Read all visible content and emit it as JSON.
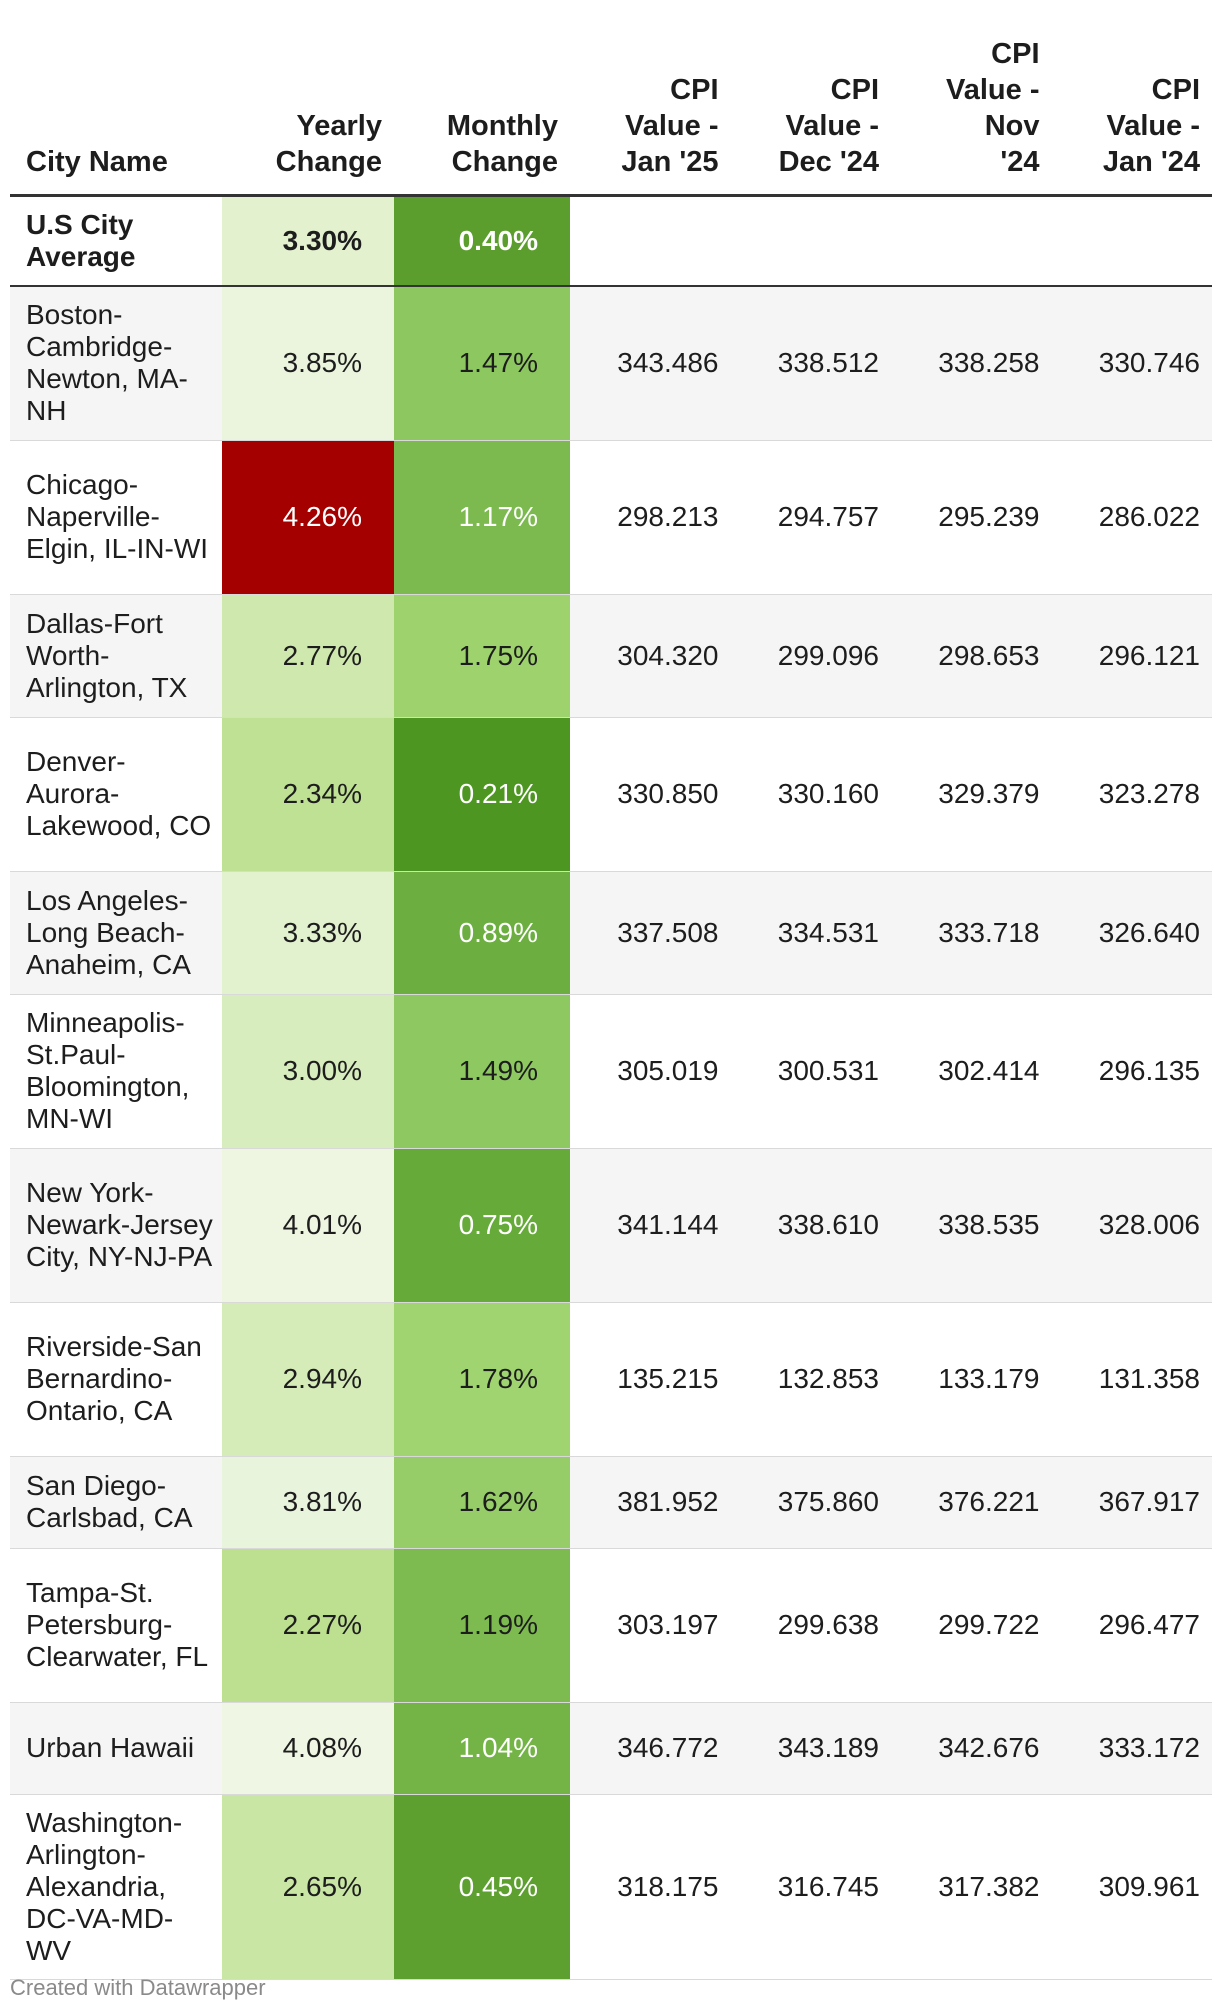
{
  "chart_data": {
    "type": "table",
    "columns": [
      "City Name",
      "Yearly Change",
      "Monthly Change",
      "CPI Value - Jan '25",
      "CPI Value - Dec '24",
      "CPI Value - Nov '24",
      "CPI Value - Jan '24"
    ],
    "rows": [
      {
        "city": "U.S City Average",
        "yearly": "3.30%",
        "monthly": "0.40%",
        "jan25": "",
        "dec24": "",
        "nov24": "",
        "jan24": "",
        "yearly_bg": "#e3f1cf",
        "yearly_fg": "#1d1d1d",
        "monthly_bg": "#5c9e2e",
        "monthly_fg": "#ffffff"
      },
      {
        "city": "Boston-Cambridge-Newton, MA-NH",
        "yearly": "3.85%",
        "monthly": "1.47%",
        "jan25": "343.486",
        "dec24": "338.512",
        "nov24": "338.258",
        "jan24": "330.746",
        "yearly_bg": "#ebf5de",
        "yearly_fg": "#1d1d1d",
        "monthly_bg": "#8dc760",
        "monthly_fg": "#1d1d1d"
      },
      {
        "city": "Chicago-Naperville-Elgin, IL-IN-WI",
        "yearly": "4.26%",
        "monthly": "1.17%",
        "jan25": "298.213",
        "dec24": "294.757",
        "nov24": "295.239",
        "jan24": "286.022",
        "yearly_bg": "#a50000",
        "yearly_fg": "#ffffff",
        "monthly_bg": "#7cba4f",
        "monthly_fg": "#ffffff"
      },
      {
        "city": "Dallas-Fort Worth-Arlington, TX",
        "yearly": "2.77%",
        "monthly": "1.75%",
        "jan25": "304.320",
        "dec24": "299.096",
        "nov24": "298.653",
        "jan24": "296.121",
        "yearly_bg": "#cfe8ae",
        "yearly_fg": "#1d1d1d",
        "monthly_bg": "#9dd26d",
        "monthly_fg": "#1d1d1d"
      },
      {
        "city": "Denver-Aurora-Lakewood, CO",
        "yearly": "2.34%",
        "monthly": "0.21%",
        "jan25": "330.850",
        "dec24": "330.160",
        "nov24": "329.379",
        "jan24": "323.278",
        "yearly_bg": "#bfe194",
        "yearly_fg": "#1d1d1d",
        "monthly_bg": "#4e9622",
        "monthly_fg": "#ffffff"
      },
      {
        "city": "Los Angeles-Long Beach-Anaheim, CA",
        "yearly": "3.33%",
        "monthly": "0.89%",
        "jan25": "337.508",
        "dec24": "334.531",
        "nov24": "333.718",
        "jan24": "326.640",
        "yearly_bg": "#e2f1ce",
        "yearly_fg": "#1d1d1d",
        "monthly_bg": "#6caf40",
        "monthly_fg": "#ffffff"
      },
      {
        "city": "Minneapolis-St.Paul-Bloomington, MN-WI",
        "yearly": "3.00%",
        "monthly": "1.49%",
        "jan25": "305.019",
        "dec24": "300.531",
        "nov24": "302.414",
        "jan24": "296.135",
        "yearly_bg": "#d8edbd",
        "yearly_fg": "#1d1d1d",
        "monthly_bg": "#8ec861",
        "monthly_fg": "#1d1d1d"
      },
      {
        "city": "New York-Newark-Jersey City, NY-NJ-PA",
        "yearly": "4.01%",
        "monthly": "0.75%",
        "jan25": "341.144",
        "dec24": "338.610",
        "nov24": "338.535",
        "jan24": "328.006",
        "yearly_bg": "#eef6e2",
        "yearly_fg": "#1d1d1d",
        "monthly_bg": "#66aa3a",
        "monthly_fg": "#ffffff"
      },
      {
        "city": "Riverside-San Bernardino-Ontario, CA",
        "yearly": "2.94%",
        "monthly": "1.78%",
        "jan25": "135.215",
        "dec24": "132.853",
        "nov24": "133.179",
        "jan24": "131.358",
        "yearly_bg": "#d5ebb8",
        "yearly_fg": "#1d1d1d",
        "monthly_bg": "#a0d470",
        "monthly_fg": "#1d1d1d"
      },
      {
        "city": "San Diego-Carlsbad, CA",
        "yearly": "3.81%",
        "monthly": "1.62%",
        "jan25": "381.952",
        "dec24": "375.860",
        "nov24": "376.221",
        "jan24": "367.917",
        "yearly_bg": "#e9f4dc",
        "yearly_fg": "#1d1d1d",
        "monthly_bg": "#96cd68",
        "monthly_fg": "#1d1d1d"
      },
      {
        "city": "Tampa-St. Petersburg-Clearwater, FL",
        "yearly": "2.27%",
        "monthly": "1.19%",
        "jan25": "303.197",
        "dec24": "299.638",
        "nov24": "299.722",
        "jan24": "296.477",
        "yearly_bg": "#bcdf90",
        "yearly_fg": "#1d1d1d",
        "monthly_bg": "#7dbb50",
        "monthly_fg": "#1d1d1d"
      },
      {
        "city": "Urban Hawaii",
        "yearly": "4.08%",
        "monthly": "1.04%",
        "jan25": "346.772",
        "dec24": "343.189",
        "nov24": "342.676",
        "jan24": "333.172",
        "yearly_bg": "#eff7e4",
        "yearly_fg": "#1d1d1d",
        "monthly_bg": "#74b447",
        "monthly_fg": "#ffffff"
      },
      {
        "city": "Washington-Arlington-Alexandria, DC-VA-MD-WV",
        "yearly": "2.65%",
        "monthly": "0.45%",
        "jan25": "318.175",
        "dec24": "316.745",
        "nov24": "317.382",
        "jan24": "309.961",
        "yearly_bg": "#c9e6a5",
        "yearly_fg": "#1d1d1d",
        "monthly_bg": "#5ea030",
        "monthly_fg": "#ffffff"
      }
    ]
  },
  "footer": "Created with Datawrapper"
}
